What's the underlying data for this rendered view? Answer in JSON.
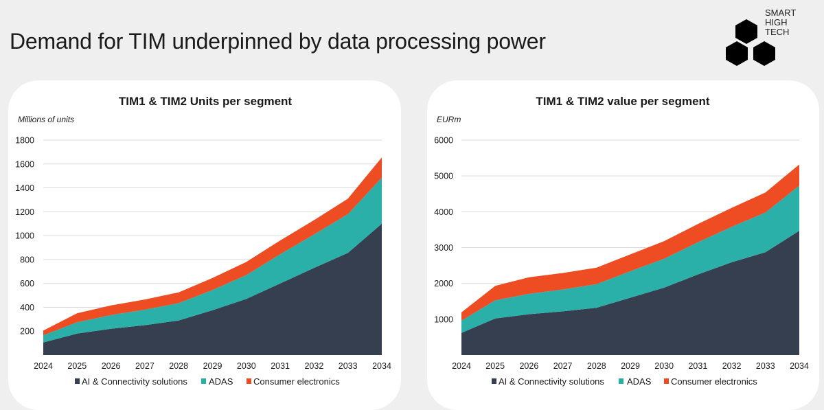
{
  "page": {
    "title": "Demand for TIM underpinned by data processing power"
  },
  "logo": {
    "lines": [
      "SMART",
      "HIGH",
      "TECH"
    ]
  },
  "colors": {
    "ai": "#353f50",
    "adas": "#2ab0a8",
    "consumer": "#ee4c22"
  },
  "chart_data": [
    {
      "type": "area",
      "stacked": true,
      "title": "TIM1 & TIM2 Units per segment",
      "ylabel": "Millions of units",
      "xlabel": "",
      "x": [
        "2024",
        "2025",
        "2026",
        "2027",
        "2028",
        "2029",
        "2030",
        "2031",
        "2032",
        "2033",
        "2034"
      ],
      "ylim": [
        0,
        1800
      ],
      "yticks": [
        200,
        400,
        600,
        800,
        1000,
        1200,
        1400,
        1600,
        1800
      ],
      "series": [
        {
          "name": "AI & Connectivity solutions",
          "color": "#353f50",
          "values": [
            105,
            180,
            220,
            250,
            290,
            375,
            470,
            600,
            730,
            855,
            1100
          ]
        },
        {
          "name": "ADAS",
          "color": "#2ab0a8",
          "values": [
            60,
            95,
            115,
            130,
            145,
            170,
            200,
            245,
            280,
            325,
            385
          ]
        },
        {
          "name": "Consumer electronics",
          "color": "#ee4c22",
          "values": [
            40,
            75,
            80,
            85,
            90,
            100,
            110,
            115,
            120,
            130,
            170
          ]
        }
      ],
      "legend": "bottom",
      "grid": true
    },
    {
      "type": "area",
      "stacked": true,
      "title": "TIM1 & TIM2 value per segment",
      "ylabel": "EURm",
      "xlabel": "",
      "x": [
        "2024",
        "2025",
        "2026",
        "2027",
        "2028",
        "2029",
        "2030",
        "2031",
        "2032",
        "2033",
        "2034"
      ],
      "ylim": [
        0,
        6000
      ],
      "yticks": [
        1000,
        2000,
        3000,
        4000,
        5000,
        6000
      ],
      "series": [
        {
          "name": "AI & Connectivity solutions",
          "color": "#353f50",
          "values": [
            620,
            1020,
            1140,
            1220,
            1320,
            1600,
            1880,
            2250,
            2590,
            2870,
            3470
          ]
        },
        {
          "name": "ADAS",
          "color": "#2ab0a8",
          "values": [
            340,
            510,
            570,
            610,
            660,
            740,
            810,
            900,
            990,
            1110,
            1260
          ]
        },
        {
          "name": "Consumer electronics",
          "color": "#ee4c22",
          "values": [
            230,
            400,
            460,
            460,
            460,
            470,
            490,
            510,
            530,
            560,
            590
          ]
        }
      ],
      "legend": "bottom",
      "grid": true
    }
  ]
}
